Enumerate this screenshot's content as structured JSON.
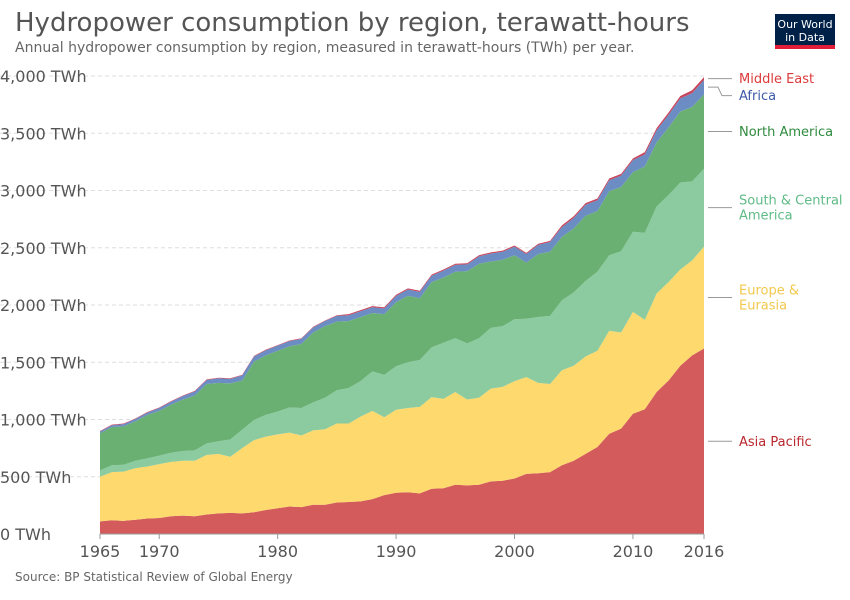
{
  "header": {
    "title": "Hydropower consumption by region, terawatt-hours",
    "subtitle": "Annual hydropower consumption by region, measured in terawatt-hours (TWh) per year.",
    "logo_line1": "Our World",
    "logo_line2": "in Data"
  },
  "footer": {
    "source": "Source: BP Statistical Review of Global Energy"
  },
  "chart_data": {
    "type": "area",
    "stacked": true,
    "title": "Hydropower consumption by region, terawatt-hours",
    "xlabel": "",
    "ylabel": "",
    "xlim": [
      1965,
      2016
    ],
    "ylim": [
      0,
      4000
    ],
    "grid": true,
    "legend": "right",
    "x_ticks": [
      1965,
      1970,
      1980,
      1990,
      2000,
      2010,
      2016
    ],
    "y_ticks": [
      {
        "value": 0,
        "label": "0 TWh"
      },
      {
        "value": 500,
        "label": "500 TWh"
      },
      {
        "value": 1000,
        "label": "1,000 TWh"
      },
      {
        "value": 1500,
        "label": "1,500 TWh"
      },
      {
        "value": 2000,
        "label": "2,000 TWh"
      },
      {
        "value": 2500,
        "label": "2,500 TWh"
      },
      {
        "value": 3000,
        "label": "3,000 TWh"
      },
      {
        "value": 3500,
        "label": "3,500 TWh"
      },
      {
        "value": 4000,
        "label": "4,000 TWh"
      }
    ],
    "x": [
      1965,
      1966,
      1967,
      1968,
      1969,
      1970,
      1971,
      1972,
      1973,
      1974,
      1975,
      1976,
      1977,
      1978,
      1979,
      1980,
      1981,
      1982,
      1983,
      1984,
      1985,
      1986,
      1987,
      1988,
      1989,
      1990,
      1991,
      1992,
      1993,
      1994,
      1995,
      1996,
      1997,
      1998,
      1999,
      2000,
      2001,
      2002,
      2003,
      2004,
      2005,
      2006,
      2007,
      2008,
      2009,
      2010,
      2011,
      2012,
      2013,
      2014,
      2015,
      2016
    ],
    "series": [
      {
        "name": "Asia Pacific",
        "color": "#d45b5b",
        "label_color": "#b8282e",
        "label_lines": [
          "Asia Pacific"
        ],
        "values": [
          110,
          120,
          115,
          125,
          135,
          140,
          155,
          160,
          155,
          170,
          180,
          185,
          180,
          190,
          210,
          225,
          240,
          235,
          255,
          255,
          275,
          280,
          285,
          305,
          340,
          360,
          365,
          355,
          395,
          400,
          430,
          425,
          430,
          460,
          465,
          485,
          525,
          530,
          540,
          600,
          640,
          700,
          760,
          875,
          920,
          1050,
          1090,
          1240,
          1340,
          1470,
          1560,
          1620
        ]
      },
      {
        "name": "Europe & Eurasia",
        "color": "#fdd96e",
        "label_color": "#f2c94c",
        "label_lines": [
          "Europe &",
          "Eurasia"
        ],
        "values": [
          390,
          420,
          430,
          450,
          455,
          470,
          475,
          480,
          485,
          520,
          520,
          490,
          570,
          630,
          640,
          645,
          645,
          625,
          650,
          660,
          690,
          685,
          740,
          770,
          680,
          725,
          735,
          755,
          800,
          780,
          810,
          750,
          760,
          810,
          820,
          850,
          845,
          790,
          770,
          830,
          830,
          850,
          840,
          900,
          840,
          890,
          780,
          860,
          860,
          840,
          830,
          890
        ]
      },
      {
        "name": "South & Central America",
        "color": "#8ccba0",
        "label_color": "#5fbb86",
        "label_lines": [
          "South & Central",
          "America"
        ],
        "values": [
          55,
          60,
          60,
          65,
          70,
          75,
          80,
          85,
          90,
          100,
          110,
          150,
          160,
          175,
          190,
          200,
          220,
          240,
          245,
          275,
          290,
          310,
          310,
          345,
          370,
          380,
          400,
          410,
          435,
          490,
          470,
          490,
          520,
          530,
          530,
          540,
          510,
          575,
          595,
          610,
          640,
          660,
          690,
          660,
          710,
          700,
          760,
          760,
          760,
          760,
          690,
          680
        ]
      },
      {
        "name": "North America",
        "color": "#6ab073",
        "label_color": "#2f8b3e",
        "label_lines": [
          "North America"
        ],
        "values": [
          325,
          335,
          335,
          345,
          380,
          390,
          420,
          450,
          480,
          520,
          510,
          490,
          430,
          510,
          520,
          530,
          535,
          560,
          610,
          625,
          600,
          585,
          560,
          510,
          530,
          560,
          580,
          540,
          570,
          570,
          580,
          630,
          650,
          580,
          580,
          560,
          490,
          550,
          560,
          555,
          560,
          570,
          530,
          560,
          560,
          520,
          580,
          560,
          590,
          620,
          650,
          650
        ]
      },
      {
        "name": "Africa",
        "color": "#6c8dc4",
        "label_color": "#3c5aa8",
        "label_lines": [
          "Africa"
        ],
        "values": [
          15,
          15,
          20,
          20,
          20,
          25,
          25,
          30,
          35,
          35,
          40,
          40,
          45,
          45,
          45,
          45,
          45,
          45,
          45,
          45,
          50,
          50,
          50,
          50,
          50,
          55,
          55,
          55,
          55,
          60,
          60,
          60,
          65,
          70,
          70,
          75,
          75,
          80,
          85,
          85,
          90,
          95,
          95,
          95,
          100,
          105,
          105,
          105,
          110,
          115,
          120,
          125
        ]
      },
      {
        "name": "Middle East",
        "color": "#c7455c",
        "label_color": "#dd3b3b",
        "label_lines": [
          "Middle East"
        ],
        "values": [
          5,
          5,
          5,
          5,
          5,
          5,
          5,
          5,
          5,
          5,
          5,
          5,
          5,
          5,
          5,
          5,
          5,
          5,
          5,
          5,
          5,
          10,
          10,
          10,
          10,
          10,
          10,
          10,
          10,
          10,
          10,
          10,
          10,
          10,
          10,
          10,
          10,
          10,
          10,
          15,
          15,
          15,
          15,
          15,
          15,
          15,
          20,
          20,
          20,
          20,
          25,
          25
        ]
      }
    ]
  }
}
